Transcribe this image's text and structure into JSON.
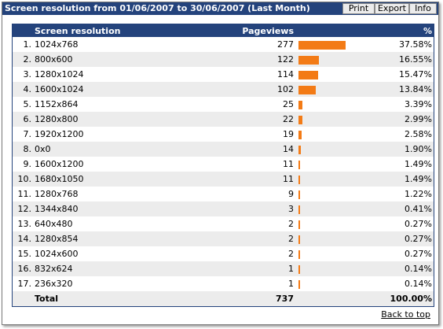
{
  "window": {
    "title": "Screen resolution from 01/06/2007 to 30/06/2007 (Last Month)"
  },
  "toolbar": {
    "print_label": "Print",
    "export_label": "Export",
    "info_label": "Info"
  },
  "table": {
    "headers": {
      "name": "Screen resolution",
      "pageviews": "Pageviews",
      "percent": "%"
    },
    "rows": [
      {
        "rank": "1.",
        "name": "1024x768",
        "pageviews": 277,
        "percent": "37.58%"
      },
      {
        "rank": "2.",
        "name": "800x600",
        "pageviews": 122,
        "percent": "16.55%"
      },
      {
        "rank": "3.",
        "name": "1280x1024",
        "pageviews": 114,
        "percent": "15.47%"
      },
      {
        "rank": "4.",
        "name": "1600x1024",
        "pageviews": 102,
        "percent": "13.84%"
      },
      {
        "rank": "5.",
        "name": "1152x864",
        "pageviews": 25,
        "percent": "3.39%"
      },
      {
        "rank": "6.",
        "name": "1280x800",
        "pageviews": 22,
        "percent": "2.99%"
      },
      {
        "rank": "7.",
        "name": "1920x1200",
        "pageviews": 19,
        "percent": "2.58%"
      },
      {
        "rank": "8.",
        "name": "0x0",
        "pageviews": 14,
        "percent": "1.90%"
      },
      {
        "rank": "9.",
        "name": "1600x1200",
        "pageviews": 11,
        "percent": "1.49%"
      },
      {
        "rank": "10.",
        "name": "1680x1050",
        "pageviews": 11,
        "percent": "1.49%"
      },
      {
        "rank": "11.",
        "name": "1280x768",
        "pageviews": 9,
        "percent": "1.22%"
      },
      {
        "rank": "12.",
        "name": "1344x840",
        "pageviews": 3,
        "percent": "0.41%"
      },
      {
        "rank": "13.",
        "name": "640x480",
        "pageviews": 2,
        "percent": "0.27%"
      },
      {
        "rank": "14.",
        "name": "1280x854",
        "pageviews": 2,
        "percent": "0.27%"
      },
      {
        "rank": "15.",
        "name": "1024x600",
        "pageviews": 2,
        "percent": "0.27%"
      },
      {
        "rank": "16.",
        "name": "832x624",
        "pageviews": 1,
        "percent": "0.14%"
      },
      {
        "rank": "17.",
        "name": "236x320",
        "pageviews": 1,
        "percent": "0.14%"
      }
    ],
    "total": {
      "label": "Total",
      "pageviews": "737",
      "percent": "100.00%"
    }
  },
  "footer": {
    "back_to_top": "Back to top"
  },
  "colors": {
    "header_bg": "#24437c",
    "bar": "#f37b16",
    "alt_row": "#ececec"
  }
}
